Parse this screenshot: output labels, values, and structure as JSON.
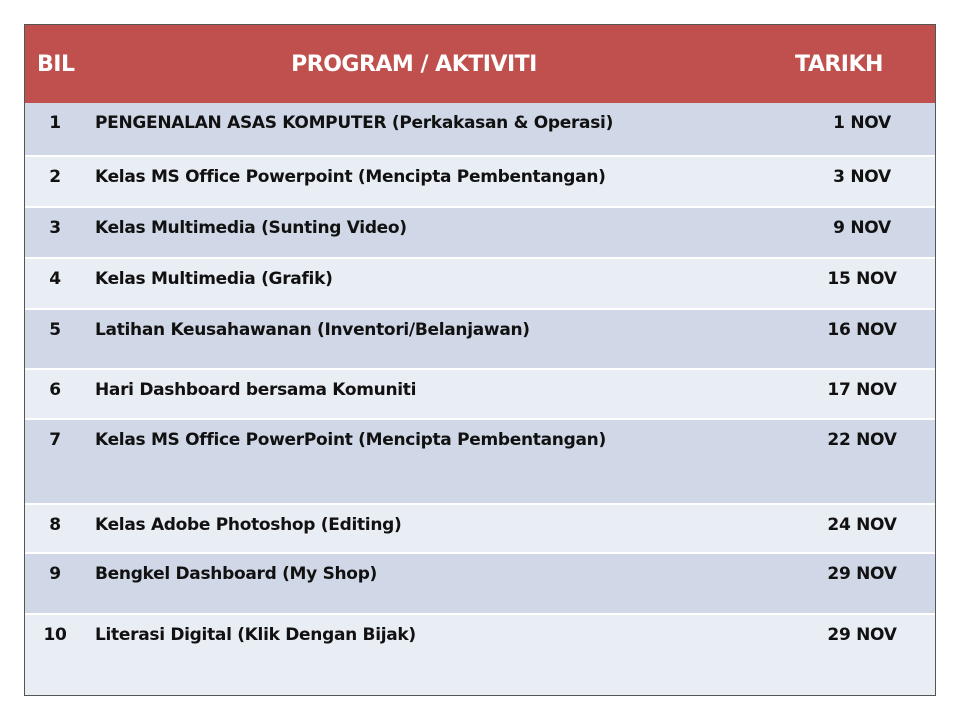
{
  "header": {
    "bil": "BIL",
    "program": "PROGRAM / AKTIVITI",
    "tarikh": "TARIKH"
  },
  "rows": [
    {
      "bil": "1",
      "program": "PENGENALAN ASAS KOMPUTER (Perkakasan & Operasi)",
      "tarikh": "1 NOV"
    },
    {
      "bil": "2",
      "program": "Kelas MS Office Powerpoint (Mencipta Pembentangan)",
      "tarikh": "3 NOV"
    },
    {
      "bil": "3",
      "program": "Kelas  Multimedia (Sunting Video)",
      "tarikh": "9 NOV"
    },
    {
      "bil": "4",
      "program": "Kelas  Multimedia (Grafik)",
      "tarikh": "15 NOV"
    },
    {
      "bil": "5",
      "program": "Latihan Keusahawanan (Inventori/Belanjawan)",
      "tarikh": "16 NOV"
    },
    {
      "bil": "6",
      "program": "Hari Dashboard bersama Komuniti",
      "tarikh": "17 NOV"
    },
    {
      "bil": "7",
      "program": "Kelas MS Office PowerPoint (Mencipta Pembentangan)",
      "tarikh": "22 NOV"
    },
    {
      "bil": "8",
      "program": "Kelas Adobe Photoshop (Editing)",
      "tarikh": "24 NOV"
    },
    {
      "bil": "9",
      "program": "Bengkel Dashboard (My Shop)",
      "tarikh": "29 NOV"
    },
    {
      "bil": "10",
      "program": "Literasi Digital (Klik Dengan Bijak)",
      "tarikh": "29 NOV"
    }
  ],
  "colors": {
    "header_bg": "#c0504d",
    "row_odd": "#d0d8e8",
    "row_even": "#e9edf4"
  }
}
